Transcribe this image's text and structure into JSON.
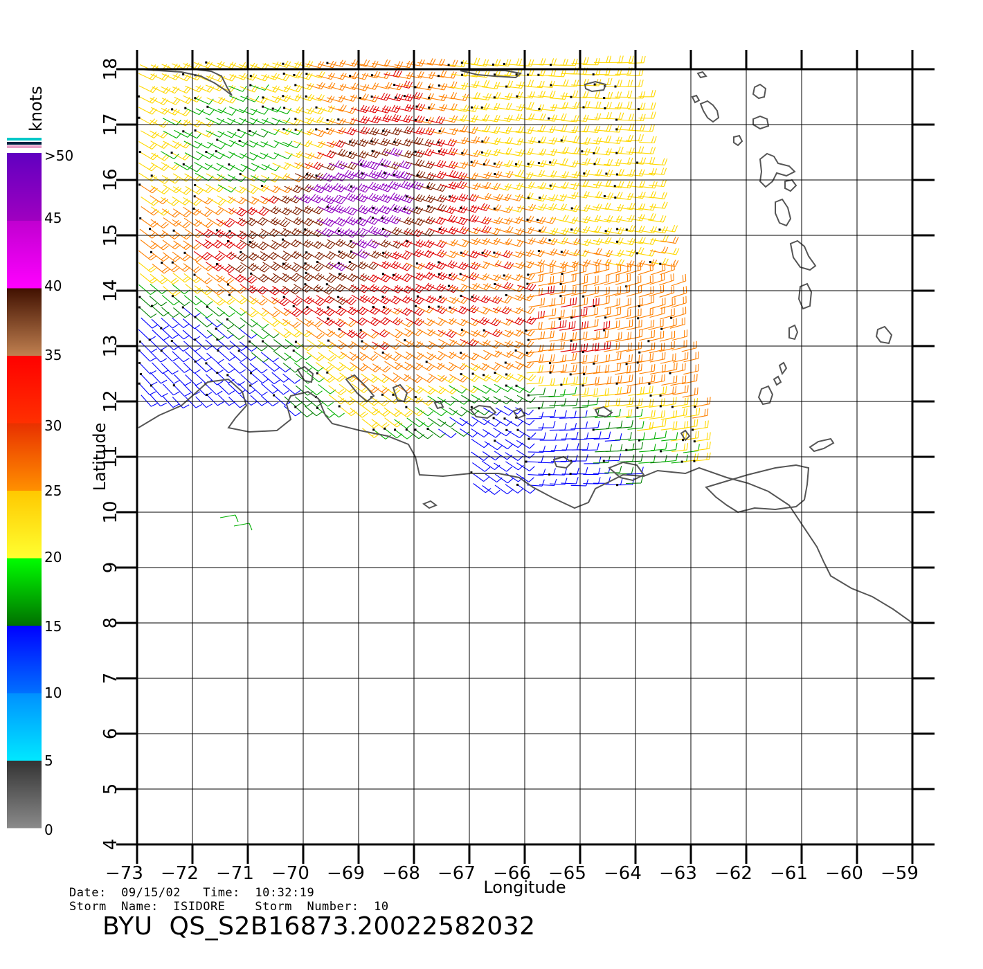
{
  "chart_data": {
    "type": "wind-barb-map",
    "xlabel": "Longitude",
    "ylabel": "Latitude",
    "xlim": [
      -73,
      -59
    ],
    "ylim": [
      4,
      18
    ],
    "x_ticks": [
      "−73",
      "−72",
      "−71",
      "−70",
      "−69",
      "−68",
      "−67",
      "−66",
      "−65",
      "−64",
      "−63",
      "−62",
      "−61",
      "−60",
      "−59"
    ],
    "y_ticks": [
      "4",
      "5",
      "6",
      "7",
      "8",
      "9",
      "10",
      "11",
      "12",
      "13",
      "14",
      "15",
      "16",
      "17",
      "18"
    ],
    "grid": true,
    "colorbar": {
      "unit": "knots",
      "tick_labels": [
        "0",
        "5",
        "10",
        "15",
        "20",
        "25",
        "30",
        "35",
        "40",
        "45",
        ">50"
      ],
      "bands": [
        {
          "from": 0,
          "to": 5,
          "top": "#333333",
          "bottom": "#8a8a8a"
        },
        {
          "from": 5,
          "to": 10,
          "top": "#0090ff",
          "bottom": "#00e8ff"
        },
        {
          "from": 10,
          "to": 15,
          "top": "#0000ff",
          "bottom": "#0070ff"
        },
        {
          "from": 15,
          "to": 20,
          "top": "#00ff00",
          "bottom": "#007000"
        },
        {
          "from": 20,
          "to": 25,
          "top": "#ffc800",
          "bottom": "#ffff30"
        },
        {
          "from": 25,
          "to": 30,
          "top": "#e83000",
          "bottom": "#ff9000"
        },
        {
          "from": 30,
          "to": 35,
          "top": "#ff0000",
          "bottom": "#ff3000"
        },
        {
          "from": 35,
          "to": 40,
          "top": "#401000",
          "bottom": "#c08050"
        },
        {
          "from": 40,
          "to": 45,
          "top": "#c000d0",
          "bottom": "#ff00ff"
        },
        {
          "from": 45,
          "to": 50,
          "top": "#6000c0",
          "bottom": "#a000c0"
        }
      ]
    },
    "wind_region": {
      "lon_min": -73,
      "lon_max": -63,
      "lat_min": 10.3,
      "lat_max": 18.2,
      "speed_zones": [
        {
          "lon": -70,
          "lat": 15.3,
          "speed": 38
        },
        {
          "lon": -69.5,
          "lat": 15.6,
          "speed": 45
        },
        {
          "lon": -67.5,
          "lat": 14.1,
          "speed": 30
        },
        {
          "lon": -65,
          "lat": 13.3,
          "speed": 30
        },
        {
          "lon": -64.2,
          "lat": 13.5,
          "speed": 27
        },
        {
          "lon": -64.5,
          "lat": 15.5,
          "speed": 23
        },
        {
          "lon": -65.5,
          "lat": 17,
          "speed": 22
        },
        {
          "lon": -66,
          "lat": 11.2,
          "speed": 12
        },
        {
          "lon": -72,
          "lat": 12.5,
          "speed": 12
        },
        {
          "lon": -71,
          "lat": 16.5,
          "speed": 18
        }
      ],
      "colors": {
        "blue": "#0000ff",
        "lightblue": "#0090ff",
        "green": "#00b000",
        "darkgreen": "#008000",
        "yellow": "#ffd800",
        "orange": "#ff8000",
        "red": "#e00000",
        "brown": "#802000",
        "purple": "#9000c0"
      }
    },
    "coastline_color": "#555555"
  },
  "footer": {
    "date_line": "Date:  09/15/02   Time:  10:32:19",
    "storm_line": "Storm  Name:  ISIDORE    Storm  Number:  10",
    "title": "BYU  QS_S2B16873.20022582032"
  }
}
